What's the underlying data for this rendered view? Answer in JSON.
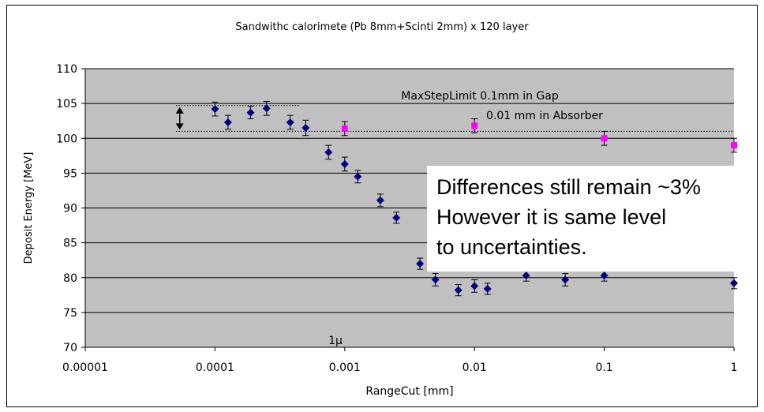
{
  "chart_data": {
    "type": "scatter",
    "title": "Sandwithc calorimete (Pb 8mm+Scinti 2mm) x 120 layer",
    "xlabel": "RangeCut [mm]",
    "ylabel": "Deposit Energy [MeV]",
    "xscale": "log",
    "xlim": [
      1e-05,
      1
    ],
    "ylim": [
      70,
      110
    ],
    "x_ticks": [
      "0.00001",
      "0.0001",
      "0.001",
      "0.01",
      "0.1",
      "1"
    ],
    "y_ticks": [
      "70",
      "75",
      "80",
      "85",
      "90",
      "95",
      "100",
      "105",
      "110"
    ],
    "grid": "horizontal",
    "plot_background": "#c0c0c0",
    "series": [
      {
        "color": "#000080",
        "marker": "diamond",
        "points": [
          {
            "x": 0.0001,
            "y": 104.2,
            "err": 1.0
          },
          {
            "x": 0.000126,
            "y": 102.3,
            "err": 1.0
          },
          {
            "x": 0.000188,
            "y": 103.7,
            "err": 0.9
          },
          {
            "x": 0.00025,
            "y": 104.3,
            "err": 1.0
          },
          {
            "x": 0.00038,
            "y": 102.3,
            "err": 1.0
          },
          {
            "x": 0.0005,
            "y": 101.5,
            "err": 1.1
          },
          {
            "x": 0.00075,
            "y": 98.0,
            "err": 1.0
          },
          {
            "x": 0.001,
            "y": 96.3,
            "err": 1.0
          },
          {
            "x": 0.00126,
            "y": 94.5,
            "err": 0.9
          },
          {
            "x": 0.00188,
            "y": 91.1,
            "err": 0.9
          },
          {
            "x": 0.0025,
            "y": 88.6,
            "err": 0.8
          },
          {
            "x": 0.0038,
            "y": 82.0,
            "err": 0.8
          },
          {
            "x": 0.005,
            "y": 79.7,
            "err": 0.9
          },
          {
            "x": 0.0075,
            "y": 78.2,
            "err": 0.8
          },
          {
            "x": 0.01,
            "y": 78.8,
            "err": 0.9
          },
          {
            "x": 0.0126,
            "y": 78.4,
            "err": 0.8
          },
          {
            "x": 0.025,
            "y": 80.3,
            "err": 0.8
          },
          {
            "x": 0.05,
            "y": 79.7,
            "err": 0.9
          },
          {
            "x": 0.1,
            "y": 80.3,
            "err": 0.8
          },
          {
            "x": 1,
            "y": 79.2,
            "err": 0.8
          }
        ]
      },
      {
        "color": "#ff00ff",
        "marker": "square",
        "points": [
          {
            "x": 0.001,
            "y": 101.4,
            "err": 1.0
          },
          {
            "x": 0.01,
            "y": 101.8,
            "err": 1.0
          },
          {
            "x": 0.1,
            "y": 100.0,
            "err": 1.0
          },
          {
            "x": 1,
            "y": 99.0,
            "err": 1.0
          }
        ]
      }
    ],
    "annotations": {
      "max_step": "MaxStepLimit 0.1mm in Gap",
      "absorber": "0.01 mm in Absorber",
      "micron": "1μ",
      "note_lines": [
        "Differences still remain ~3%",
        "However it is same level",
        "to uncertainties."
      ]
    },
    "reference_levels": [
      104.7,
      101.0
    ]
  }
}
